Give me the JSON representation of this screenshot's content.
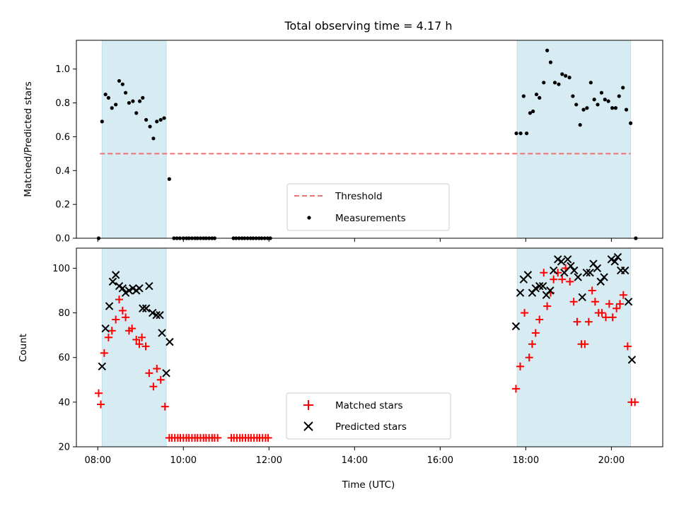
{
  "chart_data": [
    {
      "type": "scatter",
      "title": "Total observing time = 4.17 h",
      "ylabel": "Matched/Predicted stars",
      "ylim": [
        0,
        1.17
      ],
      "yticks": [
        "0.0",
        "0.2",
        "0.4",
        "0.6",
        "0.8",
        "1.0"
      ],
      "yticks_values": [
        0,
        0.2,
        0.4,
        0.6,
        0.8,
        1.0
      ],
      "xlim_hours": [
        7.5,
        21.2
      ],
      "x_unit": "hours UTC",
      "observing_windows_hours": [
        [
          8.1,
          9.6
        ],
        [
          17.8,
          20.45
        ]
      ],
      "threshold": 0.5,
      "legend_placement": "lower center",
      "series": [
        {
          "name": "Threshold",
          "kind": "line",
          "x": [
            8.05,
            20.45
          ],
          "y": [
            0.5,
            0.5
          ],
          "color": "#f07070"
        },
        {
          "name": "Measurements",
          "kind": "points",
          "color": "#000000",
          "points": [
            [
              8.02,
              0.0
            ],
            [
              8.1,
              0.69
            ],
            [
              8.18,
              0.85
            ],
            [
              8.25,
              0.83
            ],
            [
              8.33,
              0.77
            ],
            [
              8.42,
              0.79
            ],
            [
              8.5,
              0.93
            ],
            [
              8.58,
              0.91
            ],
            [
              8.65,
              0.86
            ],
            [
              8.73,
              0.8
            ],
            [
              8.82,
              0.81
            ],
            [
              8.9,
              0.74
            ],
            [
              8.98,
              0.81
            ],
            [
              9.05,
              0.83
            ],
            [
              9.13,
              0.7
            ],
            [
              9.22,
              0.66
            ],
            [
              9.3,
              0.59
            ],
            [
              9.38,
              0.69
            ],
            [
              9.47,
              0.7
            ],
            [
              9.55,
              0.71
            ],
            [
              9.67,
              0.35
            ],
            [
              9.78,
              0.0
            ],
            [
              9.85,
              0.0
            ],
            [
              9.92,
              0.0
            ],
            [
              10.0,
              0.0
            ],
            [
              10.07,
              0.0
            ],
            [
              10.13,
              0.0
            ],
            [
              10.2,
              0.0
            ],
            [
              10.27,
              0.0
            ],
            [
              10.33,
              0.0
            ],
            [
              10.4,
              0.0
            ],
            [
              10.47,
              0.0
            ],
            [
              10.53,
              0.0
            ],
            [
              10.6,
              0.0
            ],
            [
              10.67,
              0.0
            ],
            [
              10.73,
              0.0
            ],
            [
              11.17,
              0.0
            ],
            [
              11.23,
              0.0
            ],
            [
              11.3,
              0.0
            ],
            [
              11.37,
              0.0
            ],
            [
              11.43,
              0.0
            ],
            [
              11.5,
              0.0
            ],
            [
              11.57,
              0.0
            ],
            [
              11.63,
              0.0
            ],
            [
              11.7,
              0.0
            ],
            [
              11.77,
              0.0
            ],
            [
              11.83,
              0.0
            ],
            [
              11.9,
              0.0
            ],
            [
              11.97,
              0.0
            ],
            [
              12.03,
              0.0
            ],
            [
              17.78,
              0.62
            ],
            [
              17.88,
              0.62
            ],
            [
              17.95,
              0.84
            ],
            [
              18.02,
              0.62
            ],
            [
              18.1,
              0.74
            ],
            [
              18.17,
              0.75
            ],
            [
              18.25,
              0.85
            ],
            [
              18.32,
              0.83
            ],
            [
              18.42,
              0.92
            ],
            [
              18.5,
              1.11
            ],
            [
              18.58,
              1.04
            ],
            [
              18.68,
              0.92
            ],
            [
              18.77,
              0.91
            ],
            [
              18.85,
              0.97
            ],
            [
              18.93,
              0.96
            ],
            [
              19.02,
              0.95
            ],
            [
              19.1,
              0.84
            ],
            [
              19.18,
              0.79
            ],
            [
              19.27,
              0.67
            ],
            [
              19.35,
              0.76
            ],
            [
              19.43,
              0.77
            ],
            [
              19.52,
              0.92
            ],
            [
              19.6,
              0.82
            ],
            [
              19.68,
              0.79
            ],
            [
              19.77,
              0.86
            ],
            [
              19.85,
              0.82
            ],
            [
              19.93,
              0.81
            ],
            [
              20.02,
              0.77
            ],
            [
              20.1,
              0.77
            ],
            [
              20.18,
              0.84
            ],
            [
              20.27,
              0.89
            ],
            [
              20.35,
              0.76
            ],
            [
              20.45,
              0.68
            ],
            [
              20.57,
              0.0
            ]
          ]
        }
      ]
    },
    {
      "type": "scatter",
      "xlabel": "Time (UTC)",
      "ylabel": "Count",
      "ylim": [
        20,
        109
      ],
      "yticks": [
        "20",
        "40",
        "60",
        "80",
        "100"
      ],
      "yticks_values": [
        20,
        40,
        60,
        80,
        100
      ],
      "xticks": [
        "08:00",
        "10:00",
        "12:00",
        "14:00",
        "16:00",
        "18:00",
        "20:00"
      ],
      "xticks_values": [
        8,
        10,
        12,
        14,
        16,
        18,
        20
      ],
      "xlim_hours": [
        7.5,
        21.2
      ],
      "observing_windows_hours": [
        [
          8.1,
          9.6
        ],
        [
          17.8,
          20.45
        ]
      ],
      "legend_placement": "lower center",
      "series": [
        {
          "name": "Matched stars",
          "marker": "plus",
          "color": "#ff0000",
          "points": [
            [
              8.02,
              44
            ],
            [
              8.07,
              39
            ],
            [
              8.15,
              62
            ],
            [
              8.25,
              69
            ],
            [
              8.33,
              72
            ],
            [
              8.42,
              77
            ],
            [
              8.5,
              86
            ],
            [
              8.58,
              81
            ],
            [
              8.65,
              78
            ],
            [
              8.73,
              72
            ],
            [
              8.8,
              73
            ],
            [
              8.9,
              68
            ],
            [
              8.97,
              66
            ],
            [
              9.03,
              69
            ],
            [
              9.12,
              65
            ],
            [
              9.2,
              53
            ],
            [
              9.3,
              47
            ],
            [
              9.38,
              55
            ],
            [
              9.47,
              50
            ],
            [
              9.57,
              38
            ],
            [
              9.67,
              24
            ],
            [
              9.73,
              24
            ],
            [
              9.8,
              24
            ],
            [
              9.87,
              24
            ],
            [
              9.93,
              24
            ],
            [
              10.0,
              24
            ],
            [
              10.07,
              24
            ],
            [
              10.13,
              24
            ],
            [
              10.2,
              24
            ],
            [
              10.27,
              24
            ],
            [
              10.33,
              24
            ],
            [
              10.4,
              24
            ],
            [
              10.47,
              24
            ],
            [
              10.53,
              24
            ],
            [
              10.6,
              24
            ],
            [
              10.67,
              24
            ],
            [
              10.73,
              24
            ],
            [
              10.8,
              24
            ],
            [
              11.12,
              24
            ],
            [
              11.18,
              24
            ],
            [
              11.25,
              24
            ],
            [
              11.32,
              24
            ],
            [
              11.38,
              24
            ],
            [
              11.45,
              24
            ],
            [
              11.52,
              24
            ],
            [
              11.58,
              24
            ],
            [
              11.65,
              24
            ],
            [
              11.72,
              24
            ],
            [
              11.78,
              24
            ],
            [
              11.85,
              24
            ],
            [
              11.92,
              24
            ],
            [
              11.98,
              24
            ],
            [
              17.77,
              46
            ],
            [
              17.87,
              56
            ],
            [
              17.97,
              80
            ],
            [
              18.08,
              60
            ],
            [
              18.15,
              66
            ],
            [
              18.23,
              71
            ],
            [
              18.32,
              77
            ],
            [
              18.42,
              98
            ],
            [
              18.5,
              83
            ],
            [
              18.58,
              89
            ],
            [
              18.65,
              95
            ],
            [
              18.75,
              98
            ],
            [
              18.85,
              95
            ],
            [
              18.93,
              100
            ],
            [
              19.03,
              94
            ],
            [
              19.12,
              85
            ],
            [
              19.2,
              76
            ],
            [
              19.3,
              66
            ],
            [
              19.38,
              66
            ],
            [
              19.47,
              76
            ],
            [
              19.55,
              90
            ],
            [
              19.62,
              85
            ],
            [
              19.7,
              80
            ],
            [
              19.78,
              80
            ],
            [
              19.87,
              78
            ],
            [
              19.95,
              84
            ],
            [
              20.03,
              78
            ],
            [
              20.12,
              82
            ],
            [
              20.2,
              84
            ],
            [
              20.28,
              88
            ],
            [
              20.38,
              65
            ],
            [
              20.47,
              40
            ],
            [
              20.55,
              40
            ]
          ]
        },
        {
          "name": "Predicted stars",
          "marker": "x",
          "color": "#000000",
          "points": [
            [
              8.1,
              56
            ],
            [
              8.18,
              73
            ],
            [
              8.27,
              83
            ],
            [
              8.35,
              94
            ],
            [
              8.42,
              97
            ],
            [
              8.5,
              92
            ],
            [
              8.58,
              91
            ],
            [
              8.65,
              89
            ],
            [
              8.73,
              90
            ],
            [
              8.82,
              91
            ],
            [
              8.9,
              90
            ],
            [
              8.97,
              91
            ],
            [
              9.05,
              82
            ],
            [
              9.13,
              82
            ],
            [
              9.2,
              92
            ],
            [
              9.28,
              80
            ],
            [
              9.37,
              79
            ],
            [
              9.45,
              79
            ],
            [
              9.5,
              71
            ],
            [
              9.6,
              53
            ],
            [
              9.68,
              67
            ],
            [
              17.77,
              74
            ],
            [
              17.87,
              89
            ],
            [
              17.95,
              95
            ],
            [
              18.05,
              97
            ],
            [
              18.15,
              89
            ],
            [
              18.23,
              91
            ],
            [
              18.32,
              92
            ],
            [
              18.4,
              92
            ],
            [
              18.48,
              88
            ],
            [
              18.57,
              90
            ],
            [
              18.65,
              99
            ],
            [
              18.75,
              104
            ],
            [
              18.83,
              103
            ],
            [
              18.9,
              98
            ],
            [
              18.98,
              104
            ],
            [
              19.05,
              101
            ],
            [
              19.13,
              99
            ],
            [
              19.22,
              96
            ],
            [
              19.32,
              87
            ],
            [
              19.42,
              98
            ],
            [
              19.5,
              98
            ],
            [
              19.58,
              102
            ],
            [
              19.67,
              100
            ],
            [
              19.75,
              94
            ],
            [
              19.83,
              96
            ],
            [
              20.0,
              104
            ],
            [
              20.08,
              103
            ],
            [
              20.15,
              105
            ],
            [
              20.22,
              99
            ],
            [
              20.32,
              99
            ],
            [
              20.4,
              85
            ],
            [
              20.48,
              59
            ]
          ]
        }
      ]
    }
  ]
}
